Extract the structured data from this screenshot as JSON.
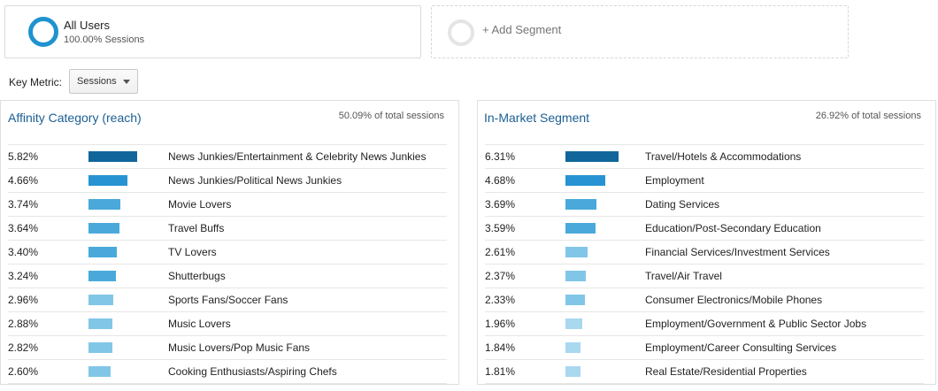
{
  "segments": {
    "all_users": {
      "name": "All Users",
      "subtitle": "100.00% Sessions"
    },
    "add_label": "+ Add Segment"
  },
  "key_metric": {
    "label": "Key Metric:",
    "selected": "Sessions"
  },
  "colors": {
    "dark": "#10669a",
    "mid": "#2793d2",
    "light": "#4aa9da",
    "lighter": "#82c6e7",
    "lightest": "#a9d8ef",
    "title": "#1b5f94"
  },
  "affinity": {
    "title": "Affinity Category (reach)",
    "share": "50.09% of total sessions",
    "rows": [
      {
        "pct": "5.82%",
        "value": 5.82,
        "label": "News Junkies/Entertainment & Celebrity News Junkies"
      },
      {
        "pct": "4.66%",
        "value": 4.66,
        "label": "News Junkies/Political News Junkies"
      },
      {
        "pct": "3.74%",
        "value": 3.74,
        "label": "Movie Lovers"
      },
      {
        "pct": "3.64%",
        "value": 3.64,
        "label": "Travel Buffs"
      },
      {
        "pct": "3.40%",
        "value": 3.4,
        "label": "TV Lovers"
      },
      {
        "pct": "3.24%",
        "value": 3.24,
        "label": "Shutterbugs"
      },
      {
        "pct": "2.96%",
        "value": 2.96,
        "label": "Sports Fans/Soccer Fans"
      },
      {
        "pct": "2.88%",
        "value": 2.88,
        "label": "Music Lovers"
      },
      {
        "pct": "2.82%",
        "value": 2.82,
        "label": "Music Lovers/Pop Music Fans"
      },
      {
        "pct": "2.60%",
        "value": 2.6,
        "label": "Cooking Enthusiasts/Aspiring Chefs"
      }
    ]
  },
  "inmarket": {
    "title": "In-Market Segment",
    "share": "26.92% of total sessions",
    "rows": [
      {
        "pct": "6.31%",
        "value": 6.31,
        "label": "Travel/Hotels & Accommodations"
      },
      {
        "pct": "4.68%",
        "value": 4.68,
        "label": "Employment"
      },
      {
        "pct": "3.69%",
        "value": 3.69,
        "label": "Dating Services"
      },
      {
        "pct": "3.59%",
        "value": 3.59,
        "label": "Education/Post-Secondary Education"
      },
      {
        "pct": "2.61%",
        "value": 2.61,
        "label": "Financial Services/Investment Services"
      },
      {
        "pct": "2.37%",
        "value": 2.37,
        "label": "Travel/Air Travel"
      },
      {
        "pct": "2.33%",
        "value": 2.33,
        "label": "Consumer Electronics/Mobile Phones"
      },
      {
        "pct": "1.96%",
        "value": 1.96,
        "label": "Employment/Government & Public Sector Jobs"
      },
      {
        "pct": "1.84%",
        "value": 1.84,
        "label": "Employment/Career Consulting Services"
      },
      {
        "pct": "1.81%",
        "value": 1.81,
        "label": "Real Estate/Residential Properties"
      }
    ]
  }
}
